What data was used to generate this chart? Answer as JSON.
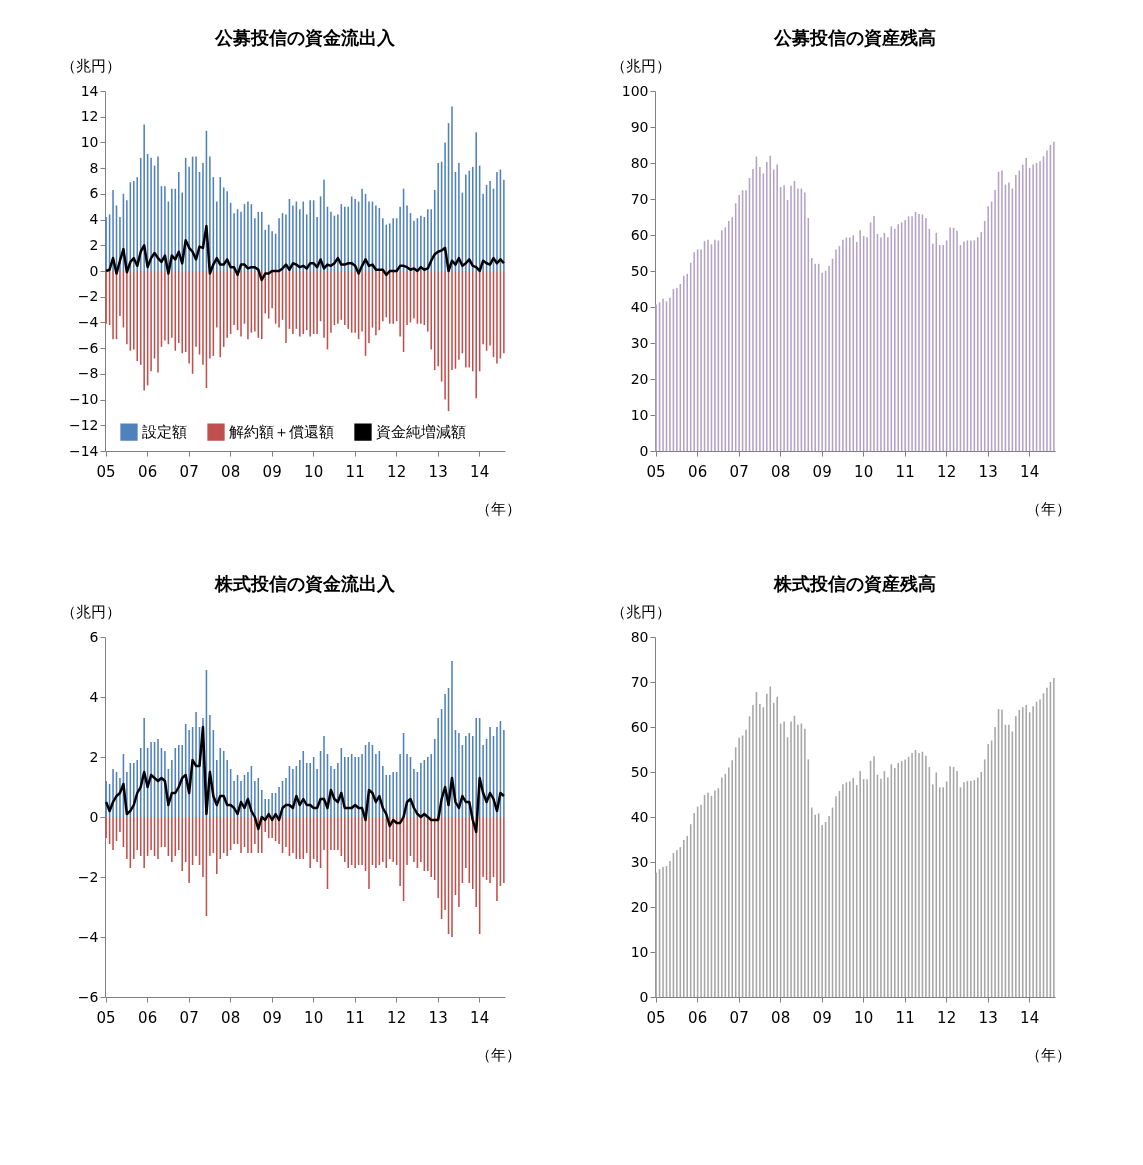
{
  "chart_data": [
    {
      "type": "bar",
      "title": "公募投信の資金流出入",
      "ylabel": "（兆円）",
      "xlabel": "（年）",
      "categories": [
        "05",
        null,
        null,
        null,
        null,
        null,
        null,
        null,
        null,
        null,
        null,
        null,
        "06",
        null,
        null,
        null,
        null,
        null,
        null,
        null,
        null,
        null,
        null,
        null,
        "07",
        null,
        null,
        null,
        null,
        null,
        null,
        null,
        null,
        null,
        null,
        null,
        "08",
        null,
        null,
        null,
        null,
        null,
        null,
        null,
        null,
        null,
        null,
        null,
        "09",
        null,
        null,
        null,
        null,
        null,
        null,
        null,
        null,
        null,
        null,
        null,
        "10",
        null,
        null,
        null,
        null,
        null,
        null,
        null,
        null,
        null,
        null,
        null,
        "11",
        null,
        null,
        null,
        null,
        null,
        null,
        null,
        null,
        null,
        null,
        null,
        "12",
        null,
        null,
        null,
        null,
        null,
        null,
        null,
        null,
        null,
        null,
        null,
        "13",
        null,
        null,
        null,
        null,
        null,
        null,
        null,
        null,
        null,
        null,
        null,
        "14",
        null,
        null,
        null,
        null,
        null,
        null,
        null
      ],
      "ylim": [
        -14,
        14
      ],
      "yticks": [
        -14,
        -12,
        -10,
        -8,
        -6,
        -4,
        -2,
        0,
        2,
        4,
        6,
        8,
        10,
        12,
        14
      ],
      "legend": "bottom",
      "series": [
        {
          "name": "設定額",
          "color": "#4f81bd",
          "values": [
            4.2,
            4.4,
            6.3,
            5.1,
            4.2,
            6.0,
            5.5,
            6.9,
            7.0,
            7.3,
            8.8,
            11.4,
            9.1,
            8.8,
            8.2,
            8.9,
            6.6,
            6.6,
            5.4,
            6.4,
            6.4,
            7.7,
            6.1,
            8.8,
            8.1,
            8.9,
            8.9,
            7.7,
            8.4,
            10.9,
            8.9,
            7.3,
            5.4,
            7.3,
            6.5,
            6.2,
            5.3,
            4.5,
            4.8,
            4.6,
            5.2,
            5.4,
            5.2,
            4.1,
            4.6,
            4.6,
            3.2,
            3.6,
            3.1,
            2.9,
            4.1,
            4.5,
            4.4,
            5.6,
            5.1,
            5.4,
            4.8,
            5.4,
            4.4,
            5.5,
            5.5,
            4.2,
            5.8,
            7.1,
            5.0,
            4.6,
            4.3,
            4.4,
            5.2,
            5.0,
            5.0,
            5.8,
            5.6,
            5.4,
            6.4,
            6.0,
            5.4,
            5.4,
            5.1,
            4.9,
            4.1,
            3.6,
            3.7,
            4.1,
            4.1,
            5.0,
            6.4,
            5.1,
            4.5,
            3.9,
            4.1,
            4.3,
            4.2,
            4.8,
            4.8,
            6.3,
            8.4,
            8.5,
            10.0,
            11.5,
            12.8,
            7.7,
            8.4,
            6.1,
            7.5,
            7.8,
            8.1,
            10.8,
            8.2,
            6.0,
            6.7,
            7.0,
            6.4,
            7.7,
            7.9,
            7.1
          ]
        },
        {
          "name": "解約額＋償還額",
          "color": "#c0504d",
          "values": [
            -4.1,
            -4.2,
            -5.3,
            -5.3,
            -3.5,
            -4.4,
            -5.7,
            -6.2,
            -6.1,
            -7.0,
            -7.3,
            -9.3,
            -8.9,
            -7.8,
            -6.8,
            -7.9,
            -5.9,
            -5.4,
            -5.7,
            -5.2,
            -6.2,
            -5.6,
            -6.4,
            -6.3,
            -7.2,
            -8.0,
            -5.9,
            -6.5,
            -7.3,
            -9.1,
            -6.8,
            -6.6,
            -4.4,
            -6.7,
            -5.9,
            -5.2,
            -4.9,
            -4.2,
            -4.6,
            -5.1,
            -4.1,
            -5.3,
            -4.8,
            -4.7,
            -5.2,
            -5.3,
            -3.3,
            -3.7,
            -2.9,
            -4.1,
            -4.4,
            -3.8,
            -5.6,
            -4.5,
            -4.9,
            -4.5,
            -5.1,
            -4.9,
            -4.6,
            -5.1,
            -4.9,
            -4.9,
            -3.9,
            -5.2,
            -6.1,
            -4.8,
            -4.2,
            -4.1,
            -3.8,
            -4.2,
            -4.5,
            -4.8,
            -4.8,
            -5.3,
            -4.7,
            -6.6,
            -5.6,
            -4.4,
            -5.0,
            -4.6,
            -3.9,
            -3.6,
            -4.1,
            -4.1,
            -3.9,
            -5.1,
            -6.3,
            -4.2,
            -4.0,
            -3.7,
            -4.1,
            -4.1,
            -4.2,
            -4.7,
            -6.1,
            -7.7,
            -7.4,
            -8.6,
            -10.0,
            -10.9,
            -7.7,
            -7.6,
            -6.9,
            -6.4,
            -7.5,
            -7.5,
            -7.8,
            -9.9,
            -7.8,
            -5.7,
            -6.2,
            -5.8,
            -6.7,
            -7.2,
            -6.8,
            -6.4
          ]
        },
        {
          "name": "資金純増減額",
          "type": "line",
          "color": "#000000",
          "values": [
            0.0,
            0.1,
            1.0,
            -0.2,
            0.8,
            1.7,
            -0.1,
            0.7,
            1.0,
            0.4,
            1.5,
            2.0,
            0.3,
            1.0,
            1.4,
            1.0,
            0.7,
            1.2,
            -0.2,
            1.2,
            0.9,
            1.5,
            0.6,
            2.4,
            1.8,
            1.5,
            0.9,
            1.9,
            1.8,
            3.5,
            -0.2,
            0.5,
            1.0,
            0.5,
            0.5,
            0.9,
            0.3,
            0.3,
            -0.3,
            0.5,
            0.5,
            0.2,
            0.3,
            0.3,
            0.1,
            -0.7,
            -0.2,
            -0.2,
            0.0,
            0.0,
            0.0,
            0.2,
            0.5,
            0.1,
            0.6,
            0.5,
            0.3,
            0.4,
            0.2,
            0.6,
            0.6,
            0.3,
            0.9,
            0.2,
            0.5,
            0.4,
            0.6,
            1.0,
            0.5,
            0.5,
            0.6,
            0.6,
            0.4,
            -0.2,
            0.4,
            0.9,
            0.4,
            0.5,
            0.1,
            0.1,
            0.1,
            -0.3,
            0.0,
            0.0,
            0.0,
            0.4,
            0.4,
            0.3,
            0.1,
            0.2,
            0.0,
            0.3,
            0.1,
            0.2,
            0.8,
            1.3,
            1.5,
            1.6,
            1.8,
            0.0,
            0.8,
            0.5,
            1.0,
            0.4,
            0.6,
            0.9,
            0.4,
            0.3,
            0.0,
            0.8,
            0.6,
            0.5,
            1.0,
            0.6,
            0.9,
            0.6
          ]
        }
      ]
    },
    {
      "type": "bar",
      "title": "公募投信の資産残高",
      "ylabel": "（兆円）",
      "xlabel": "（年）",
      "categories": [
        "05",
        null,
        null,
        null,
        null,
        null,
        null,
        null,
        null,
        null,
        null,
        null,
        "06",
        null,
        null,
        null,
        null,
        null,
        null,
        null,
        null,
        null,
        null,
        null,
        "07",
        null,
        null,
        null,
        null,
        null,
        null,
        null,
        null,
        null,
        null,
        null,
        "08",
        null,
        null,
        null,
        null,
        null,
        null,
        null,
        null,
        null,
        null,
        null,
        "09",
        null,
        null,
        null,
        null,
        null,
        null,
        null,
        null,
        null,
        null,
        null,
        "10",
        null,
        null,
        null,
        null,
        null,
        null,
        null,
        null,
        null,
        null,
        null,
        "11",
        null,
        null,
        null,
        null,
        null,
        null,
        null,
        null,
        null,
        null,
        null,
        "12",
        null,
        null,
        null,
        null,
        null,
        null,
        null,
        null,
        null,
        null,
        null,
        "13",
        null,
        null,
        null,
        null,
        null,
        null,
        null,
        null,
        null,
        null,
        null,
        "14",
        null,
        null,
        null,
        null,
        null,
        null,
        null
      ],
      "ylim": [
        0,
        100
      ],
      "yticks": [
        0,
        10,
        20,
        30,
        40,
        50,
        60,
        70,
        80,
        90,
        100
      ],
      "series": [
        {
          "color": "#b3a2c7",
          "values": [
            40.7,
            41.3,
            42.3,
            41.6,
            42.6,
            45.0,
            45.3,
            46.4,
            48.7,
            49.2,
            52.3,
            55.2,
            56.0,
            56.0,
            58.3,
            58.7,
            57.4,
            58.7,
            58.5,
            61.3,
            62.1,
            63.9,
            64.9,
            68.8,
            71.1,
            72.4,
            72.4,
            75.8,
            78.3,
            81.8,
            78.9,
            77.1,
            80.3,
            82.0,
            78.2,
            79.6,
            73.3,
            73.8,
            69.7,
            73.7,
            75.0,
            72.9,
            72.9,
            71.8,
            64.7,
            53.6,
            52.0,
            52.0,
            49.5,
            50.1,
            51.4,
            53.4,
            56.0,
            56.9,
            58.7,
            59.3,
            59.3,
            59.9,
            58.1,
            61.3,
            59.7,
            59.4,
            63.5,
            65.3,
            60.3,
            59.3,
            60.6,
            59.4,
            62.4,
            61.7,
            63.0,
            63.5,
            64.2,
            65.2,
            65.2,
            66.4,
            65.8,
            65.7,
            64.7,
            61.7,
            57.6,
            60.6,
            57.2,
            57.2,
            58.5,
            62.1,
            62.0,
            61.2,
            57.2,
            58.2,
            58.5,
            58.5,
            58.5,
            59.4,
            60.8,
            63.9,
            68.0,
            69.3,
            72.5,
            77.6,
            77.9,
            74.0,
            74.6,
            72.9,
            76.7,
            77.9,
            79.5,
            81.4,
            78.7,
            79.6,
            80.0,
            80.5,
            81.9,
            83.5,
            85.0,
            85.9
          ]
        }
      ]
    },
    {
      "type": "bar",
      "title": "株式投信の資金流出入",
      "ylabel": "（兆円）",
      "xlabel": "（年）",
      "categories": [
        "05",
        null,
        null,
        null,
        null,
        null,
        null,
        null,
        null,
        null,
        null,
        null,
        "06",
        null,
        null,
        null,
        null,
        null,
        null,
        null,
        null,
        null,
        null,
        null,
        "07",
        null,
        null,
        null,
        null,
        null,
        null,
        null,
        null,
        null,
        null,
        null,
        "08",
        null,
        null,
        null,
        null,
        null,
        null,
        null,
        null,
        null,
        null,
        null,
        "09",
        null,
        null,
        null,
        null,
        null,
        null,
        null,
        null,
        null,
        null,
        null,
        "10",
        null,
        null,
        null,
        null,
        null,
        null,
        null,
        null,
        null,
        null,
        null,
        "11",
        null,
        null,
        null,
        null,
        null,
        null,
        null,
        null,
        null,
        null,
        null,
        "12",
        null,
        null,
        null,
        null,
        null,
        null,
        null,
        null,
        null,
        null,
        null,
        "13",
        null,
        null,
        null,
        null,
        null,
        null,
        null,
        null,
        null,
        null,
        null,
        "14",
        null,
        null,
        null,
        null,
        null,
        null,
        null
      ],
      "ylim": [
        -6,
        6
      ],
      "yticks": [
        -6,
        -4,
        -2,
        0,
        2,
        4,
        6
      ],
      "legend": "bottom",
      "series": [
        {
          "name": "設定額",
          "color": "#4f81bd",
          "values": [
            1.2,
            1.1,
            1.6,
            1.5,
            1.3,
            2.1,
            1.5,
            1.8,
            1.8,
            1.9,
            2.3,
            3.3,
            2.3,
            2.5,
            2.5,
            2.6,
            2.3,
            2.2,
            1.6,
            1.9,
            2.3,
            2.4,
            2.4,
            3.1,
            2.9,
            3.0,
            3.5,
            3.0,
            3.3,
            4.9,
            3.4,
            2.9,
            1.9,
            2.3,
            2.2,
            1.9,
            1.6,
            1.2,
            1.4,
            1.2,
            1.4,
            1.5,
            1.7,
            1.2,
            1.3,
            0.9,
            0.6,
            0.6,
            0.8,
            0.8,
            1.0,
            1.2,
            1.3,
            1.7,
            1.6,
            1.7,
            1.9,
            2.2,
            1.8,
            1.8,
            2.0,
            1.6,
            2.2,
            2.7,
            2.1,
            1.7,
            1.6,
            1.8,
            2.3,
            2.0,
            2.0,
            2.1,
            2.0,
            2.0,
            2.1,
            2.4,
            2.5,
            2.4,
            2.1,
            2.2,
            1.7,
            1.4,
            1.4,
            1.5,
            1.5,
            2.1,
            2.8,
            2.1,
            2.0,
            1.6,
            1.5,
            1.8,
            1.9,
            2.0,
            2.1,
            2.6,
            3.3,
            3.6,
            4.1,
            4.3,
            5.2,
            2.9,
            2.8,
            2.4,
            2.7,
            2.8,
            2.7,
            3.3,
            3.3,
            2.4,
            2.6,
            3.0,
            2.7,
            3.0,
            3.2,
            2.9
          ]
        },
        {
          "name": "解約額＋償還額",
          "color": "#c0504d",
          "values": [
            -0.7,
            -0.9,
            -1.1,
            -0.8,
            -0.5,
            -1.0,
            -1.4,
            -1.7,
            -1.4,
            -1.1,
            -1.3,
            -1.7,
            -1.3,
            -1.1,
            -1.3,
            -1.4,
            -1.0,
            -1.0,
            -1.3,
            -1.5,
            -1.3,
            -1.1,
            -1.8,
            -1.5,
            -2.2,
            -1.6,
            -1.3,
            -1.6,
            -2.0,
            -3.3,
            -1.3,
            -1.2,
            -1.9,
            -1.4,
            -1.2,
            -1.3,
            -1.1,
            -0.9,
            -0.9,
            -1.2,
            -1.0,
            -1.2,
            -1.2,
            -0.9,
            -1.2,
            -1.2,
            -0.5,
            -0.7,
            -0.7,
            -0.8,
            -0.9,
            -1.2,
            -1.0,
            -1.3,
            -1.2,
            -1.4,
            -1.4,
            -1.4,
            -1.2,
            -1.7,
            -1.4,
            -1.5,
            -1.7,
            -1.1,
            -2.4,
            -1.1,
            -1.1,
            -1.1,
            -1.3,
            -1.5,
            -1.7,
            -1.6,
            -1.7,
            -1.6,
            -1.6,
            -1.8,
            -2.4,
            -1.6,
            -1.7,
            -1.6,
            -1.5,
            -1.7,
            -1.4,
            -1.5,
            -1.6,
            -2.3,
            -2.8,
            -1.6,
            -1.3,
            -1.5,
            -1.7,
            -1.5,
            -1.8,
            -1.8,
            -2.0,
            -2.1,
            -2.7,
            -3.4,
            -3.1,
            -3.9,
            -4.0,
            -2.6,
            -3.0,
            -2.2,
            -1.7,
            -2.2,
            -2.4,
            -3.0,
            -3.9,
            -2.0,
            -2.1,
            -2.2,
            -2.0,
            -2.8,
            -2.3,
            -2.2
          ]
        },
        {
          "name": "資金純増減額",
          "type": "line",
          "color": "#000000",
          "values": [
            0.5,
            0.2,
            0.5,
            0.7,
            0.8,
            1.1,
            0.1,
            0.2,
            0.4,
            0.8,
            1.0,
            1.5,
            1.0,
            1.4,
            1.3,
            1.2,
            1.3,
            1.2,
            0.4,
            0.8,
            0.8,
            1.0,
            1.3,
            1.4,
            0.8,
            1.9,
            1.7,
            1.7,
            3.0,
            0.1,
            1.5,
            0.7,
            0.4,
            0.7,
            0.7,
            0.4,
            0.4,
            0.3,
            0.1,
            0.5,
            0.3,
            0.6,
            0.2,
            0.0,
            -0.4,
            0.0,
            -0.1,
            0.1,
            -0.1,
            0.1,
            -0.1,
            0.3,
            0.4,
            0.4,
            0.3,
            0.7,
            0.4,
            0.6,
            0.4,
            0.4,
            0.3,
            0.3,
            0.6,
            0.6,
            0.3,
            0.9,
            0.6,
            0.5,
            0.8,
            0.3,
            0.3,
            0.3,
            0.4,
            0.3,
            0.3,
            -0.1,
            0.9,
            0.8,
            0.5,
            0.7,
            0.3,
            0.1,
            -0.3,
            -0.1,
            -0.2,
            -0.2,
            0.0,
            0.5,
            0.6,
            0.3,
            0.1,
            0.0,
            0.1,
            0.0,
            -0.1,
            -0.1,
            -0.1,
            0.6,
            1.0,
            0.4,
            1.3,
            0.5,
            0.3,
            0.7,
            0.5,
            0.5,
            -0.1,
            -0.5,
            1.3,
            0.8,
            0.5,
            0.8,
            0.6,
            0.2,
            0.8,
            0.7
          ]
        }
      ]
    },
    {
      "type": "bar",
      "title": "株式投信の資産残高",
      "ylabel": "（兆円）",
      "xlabel": "（年）",
      "categories": [
        "05",
        null,
        null,
        null,
        null,
        null,
        null,
        null,
        null,
        null,
        null,
        null,
        "06",
        null,
        null,
        null,
        null,
        null,
        null,
        null,
        null,
        null,
        null,
        null,
        "07",
        null,
        null,
        null,
        null,
        null,
        null,
        null,
        null,
        null,
        null,
        null,
        "08",
        null,
        null,
        null,
        null,
        null,
        null,
        null,
        null,
        null,
        null,
        null,
        "09",
        null,
        null,
        null,
        null,
        null,
        null,
        null,
        null,
        null,
        null,
        null,
        "10",
        null,
        null,
        null,
        null,
        null,
        null,
        null,
        null,
        null,
        null,
        null,
        "11",
        null,
        null,
        null,
        null,
        null,
        null,
        null,
        null,
        null,
        null,
        null,
        "12",
        null,
        null,
        null,
        null,
        null,
        null,
        null,
        null,
        null,
        null,
        null,
        "13",
        null,
        null,
        null,
        null,
        null,
        null,
        null,
        null,
        null,
        null,
        null,
        "14",
        null,
        null,
        null,
        null,
        null,
        null,
        null
      ],
      "ylim": [
        0,
        80
      ],
      "yticks": [
        0,
        10,
        20,
        30,
        40,
        50,
        60,
        70,
        80
      ],
      "series": [
        {
          "color": "#a6a6a6",
          "values": [
            27.6,
            28.4,
            28.9,
            29.1,
            30.2,
            32.0,
            32.6,
            33.3,
            34.9,
            35.8,
            38.4,
            40.9,
            42.3,
            42.7,
            44.9,
            45.4,
            44.7,
            45.9,
            46.4,
            48.8,
            49.6,
            51.0,
            52.6,
            55.5,
            57.6,
            58.1,
            59.4,
            62.4,
            64.9,
            67.8,
            65.1,
            64.4,
            67.4,
            69.0,
            65.4,
            66.7,
            60.7,
            61.2,
            57.7,
            61.2,
            62.5,
            60.5,
            60.8,
            59.6,
            52.8,
            42.1,
            40.5,
            40.8,
            38.2,
            38.9,
            40.2,
            42.1,
            44.6,
            45.8,
            47.3,
            47.7,
            47.9,
            48.7,
            47.1,
            50.2,
            48.4,
            48.4,
            52.5,
            53.5,
            49.4,
            48.5,
            50.2,
            48.8,
            51.7,
            50.9,
            52.0,
            52.4,
            52.8,
            53.4,
            54.2,
            54.9,
            54.2,
            54.5,
            53.6,
            51.1,
            47.2,
            49.9,
            46.6,
            46.6,
            47.9,
            51.3,
            51.1,
            50.2,
            46.6,
            47.7,
            48.0,
            48.0,
            48.2,
            48.8,
            50.0,
            52.8,
            56.2,
            57.0,
            60.0,
            64.0,
            63.9,
            60.5,
            60.5,
            59.0,
            62.4,
            63.8,
            64.4,
            64.9,
            63.3,
            64.6,
            65.6,
            66.1,
            67.5,
            68.7,
            70.0,
            70.9
          ]
        }
      ]
    }
  ]
}
